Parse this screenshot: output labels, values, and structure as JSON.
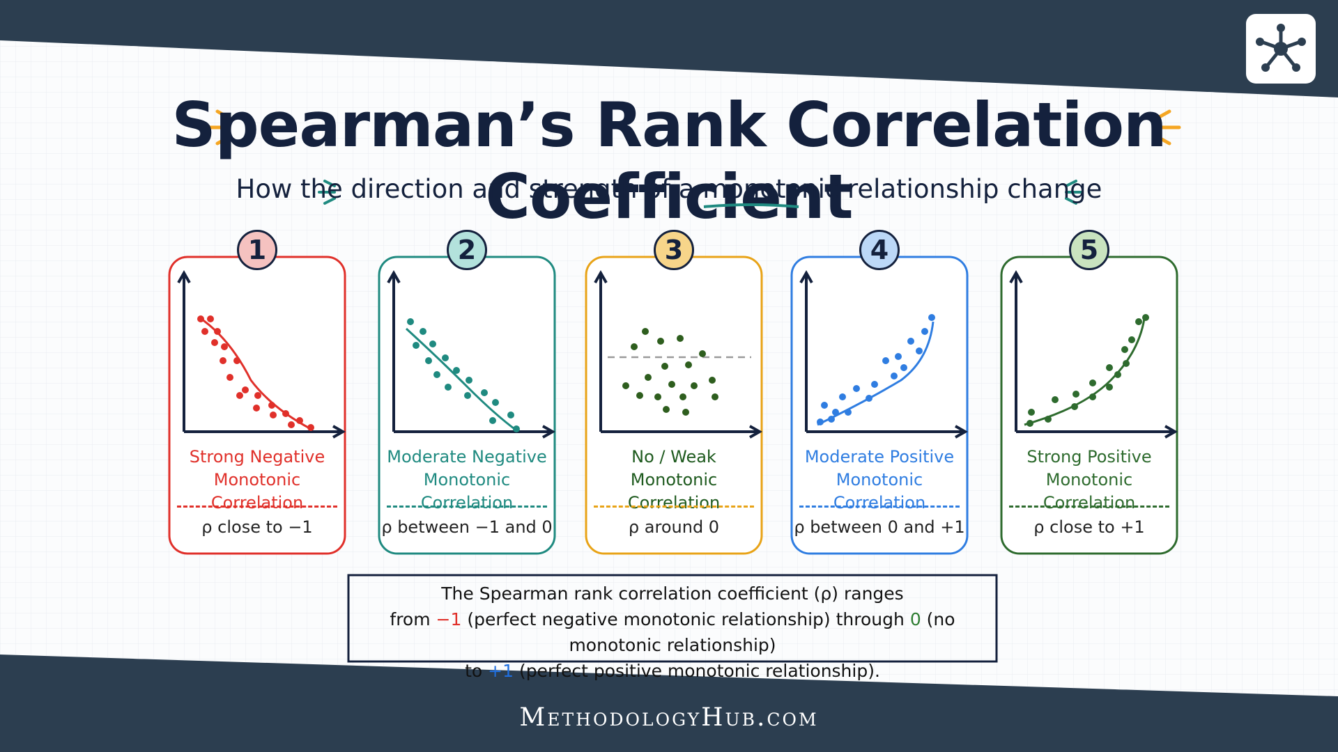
{
  "title": "Spearman’s Rank Correlation Coefficient",
  "subtitle": {
    "before": "How the direction and strength of a",
    "emphasis": "monotonic",
    "after": "relationship change"
  },
  "cards": [
    {
      "number": "1",
      "label_line1": "Strong Negative",
      "label_line2": "Monotonic Correlation",
      "rho": "ρ close to −1",
      "color": "#e0302a",
      "badge_fill": "#f5c2c0"
    },
    {
      "number": "2",
      "label_line1": "Moderate Negative",
      "label_line2": "Monotonic Correlation",
      "rho": "ρ between −1 and 0",
      "color": "#1f8a80",
      "badge_fill": "#b3e2dc"
    },
    {
      "number": "3",
      "label_line1": "No / Weak",
      "label_line2": "Monotonic Correlation",
      "rho": "ρ around 0",
      "color": "#e8a317",
      "badge_fill": "#f7d58a",
      "label_color": "#1e5a1e"
    },
    {
      "number": "4",
      "label_line1": "Moderate Positive",
      "label_line2": "Monotonic Correlation",
      "rho": "ρ between 0 and +1",
      "color": "#2f7de1",
      "badge_fill": "#bcd8f7"
    },
    {
      "number": "5",
      "label_line1": "Strong Positive",
      "label_line2": "Monotonic Correlation",
      "rho": "ρ close to +1",
      "color": "#2e6b2e",
      "badge_fill": "#c9e3bf"
    }
  ],
  "summary": {
    "line1": "The Spearman rank correlation coefficient (ρ) ranges",
    "line2_a": "from",
    "neg_value": "−1",
    "line2_b": "(perfect negative monotonic relationship) through",
    "zero_value": "0",
    "line2_c": "(no monotonic relationship)",
    "line3_a": "to",
    "pos_value": "+1",
    "line3_b": "(perfect positive monotonic relationship)."
  },
  "footer": "MethodologyHub.com",
  "logo_icon": "network-hub-icon",
  "colors": {
    "navy": "#2c3e50",
    "ink": "#14213d",
    "accent_orange": "#f5a623",
    "accent_teal": "#1f8a80",
    "negative": "#e0302a",
    "zero": "#2e7d32",
    "positive": "#1f6fe0"
  }
}
